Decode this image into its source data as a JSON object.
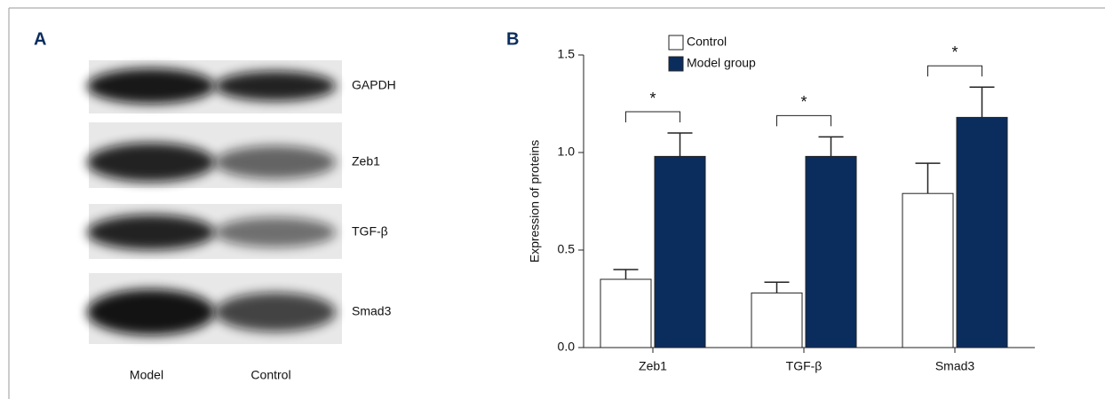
{
  "panel_a": {
    "label": "A",
    "bands": [
      "GAPDH",
      "Zeb1",
      "TGF-β",
      "Smad3"
    ],
    "lanes": [
      "Model",
      "Control"
    ]
  },
  "chart_data": {
    "type": "bar",
    "label": "B",
    "y_label": "Expression of proteins",
    "categories": [
      "Zeb1",
      "TGF-β",
      "Smad3"
    ],
    "series": [
      {
        "name": "Control",
        "color": "#ffffff",
        "values": [
          0.35,
          0.28,
          0.79
        ],
        "errors": [
          0.05,
          0.055,
          0.155
        ]
      },
      {
        "name": "Model group",
        "color": "#0b2d5e",
        "values": [
          0.98,
          0.98,
          1.18
        ],
        "errors": [
          0.12,
          0.1,
          0.155
        ]
      }
    ],
    "significance": [
      "*",
      "*",
      "*"
    ],
    "ylim": [
      0,
      1.5
    ],
    "yticks": [
      {
        "value": 0,
        "label": "0.0"
      },
      0.5,
      {
        "value": 1,
        "label": "1.0"
      },
      1.5
    ],
    "legend": "top-left"
  }
}
